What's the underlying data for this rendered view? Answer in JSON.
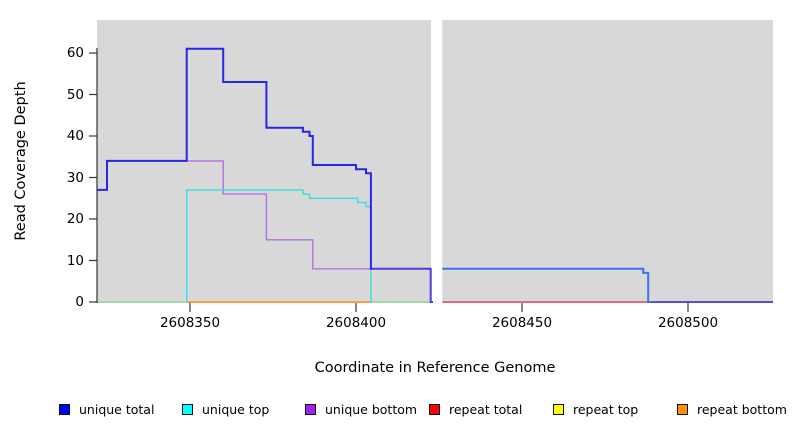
{
  "chart_data": {
    "type": "line",
    "subtype": "step-coverage-plot",
    "title": "",
    "xlabel": "Coordinate in Reference Genome",
    "ylabel": "Read Coverage Depth",
    "xlim": [
      2608322,
      2608526
    ],
    "ylim": [
      0,
      66
    ],
    "grid": false,
    "plot_background": "#d8d8d8",
    "gap_region": {
      "x_start": 2608422.6,
      "x_end": 2608426.0,
      "color": "#ffffff",
      "note": "white vertical gap (no data) spanning full plot height"
    },
    "x_ticks": [
      2608350,
      2608400,
      2608450,
      2608500
    ],
    "x_tick_labels": [
      "2608350",
      "2608400",
      "2608450",
      "2608500"
    ],
    "y_ticks": [
      0,
      10,
      20,
      30,
      40,
      50,
      60
    ],
    "y_tick_labels": [
      "0",
      "10",
      "20",
      "30",
      "40",
      "50",
      "60"
    ],
    "baseline_segments": [
      {
        "color": "#90d8a0",
        "points": [
          [
            2608322,
            0
          ]
        ],
        "end": 2608349,
        "width": 1.4
      },
      {
        "color": "#90d8a0",
        "points": [
          [
            2608404.8,
            0
          ]
        ],
        "end": 2608422.6,
        "width": 1.4
      }
    ],
    "series": [
      {
        "name": "repeat bottom",
        "legend_color": "#ff9000",
        "segments": [
          {
            "color": "#ff8c1a",
            "width": 1.5,
            "points": [
              [
                2608349,
                0
              ]
            ],
            "end": 2608404.5
          }
        ]
      },
      {
        "name": "repeat top",
        "legend_color": "#ffff00",
        "segments": []
      },
      {
        "name": "repeat total",
        "legend_color": "#ff0000",
        "segments": [
          {
            "color": "#d84a68",
            "width": 1.4,
            "points": [
              [
                2608426,
                0
              ]
            ],
            "end": 2608525.8
          }
        ]
      },
      {
        "name": "unique bottom",
        "legend_color": "#a020f0",
        "segments": [
          {
            "color": "#b36fe6",
            "width": 1.4,
            "points": [
              [
                2608322,
                27
              ],
              [
                2608325,
                34
              ],
              [
                2608360,
                26
              ],
              [
                2608373,
                15
              ],
              [
                2608387,
                8
              ],
              [
                2608422.5,
                0
              ]
            ],
            "end": 2608423
          }
        ]
      },
      {
        "name": "unique top",
        "legend_color": "#00ffff",
        "segments": [
          {
            "color": "#35dede",
            "width": 1.4,
            "points": [
              [
                2608349,
                0
              ],
              [
                2608349,
                27
              ],
              [
                2608384,
                26
              ],
              [
                2608386,
                25
              ],
              [
                2608400.5,
                24
              ],
              [
                2608403,
                23
              ],
              [
                2608404.5,
                0
              ]
            ],
            "end": 2608404.8
          }
        ]
      },
      {
        "name": "unique total",
        "legend_color": "#0000ff",
        "segments": [
          {
            "color": "#2626e6",
            "width": 2,
            "points": [
              [
                2608322,
                27
              ],
              [
                2608325,
                34
              ],
              [
                2608349,
                61
              ],
              [
                2608360,
                53
              ],
              [
                2608373,
                42
              ],
              [
                2608384,
                41
              ],
              [
                2608386,
                40
              ],
              [
                2608387,
                33
              ],
              [
                2608400,
                32
              ],
              [
                2608403,
                31
              ],
              [
                2608404.5,
                8
              ]
            ],
            "end": 2608405
          },
          {
            "color": "#4f3cd8",
            "width": 2,
            "points": [
              [
                2608405,
                8
              ],
              [
                2608422.5,
                0
              ]
            ],
            "end": 2608423.2
          },
          {
            "color": "#3b72f0",
            "width": 2,
            "points": [
              [
                2608426,
                8
              ],
              [
                2608486.5,
                7
              ],
              [
                2608488,
                0
              ]
            ],
            "end": 2608489
          },
          {
            "color": "#5a4fd8",
            "width": 2,
            "points": [
              [
                2608489,
                0
              ]
            ],
            "end": 2608525.8
          }
        ]
      }
    ],
    "legend": [
      {
        "label": "unique total",
        "color": "#0000ff"
      },
      {
        "label": "unique top",
        "color": "#00ffff"
      },
      {
        "label": "unique bottom",
        "color": "#a020f0"
      },
      {
        "label": "repeat total",
        "color": "#ff0000"
      },
      {
        "label": "repeat top",
        "color": "#ffff00"
      },
      {
        "label": "repeat bottom",
        "color": "#ff9000"
      }
    ],
    "legend_position": "bottom"
  }
}
